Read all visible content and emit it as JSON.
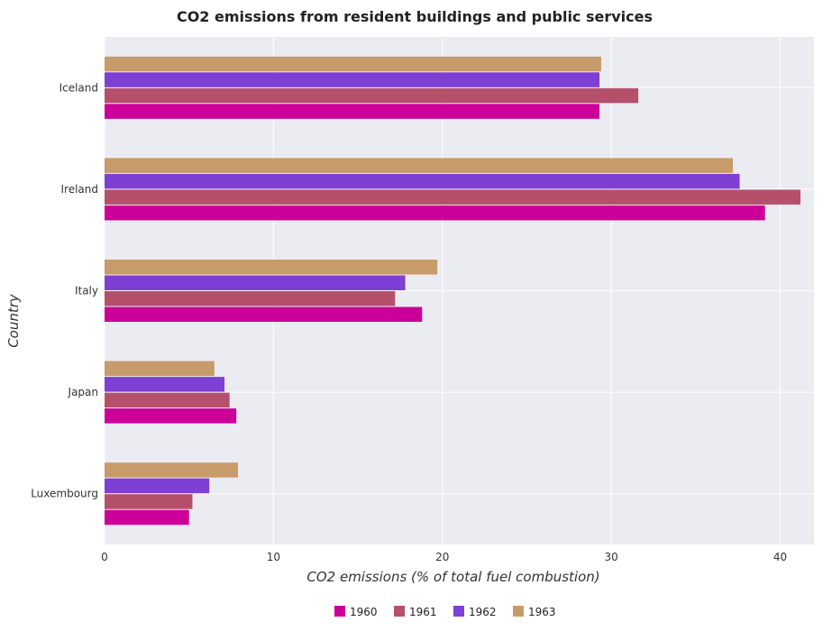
{
  "chart_data": {
    "type": "bar",
    "orientation": "horizontal",
    "title": "CO2 emissions from resident buildings and public services",
    "xlabel": "CO2 emissions (% of total fuel combustion)",
    "ylabel": "Country",
    "xlim": [
      0,
      42
    ],
    "xticks": [
      0,
      10,
      20,
      30,
      40
    ],
    "grid": true,
    "legend_position": "bottom",
    "categories": [
      "Iceland",
      "Ireland",
      "Italy",
      "Japan",
      "Luxembourg"
    ],
    "series": [
      {
        "name": "1960",
        "color": "#cc0099",
        "values": [
          29.3,
          39.1,
          18.8,
          7.8,
          5.0
        ]
      },
      {
        "name": "1961",
        "color": "#b5506b",
        "values": [
          31.6,
          41.2,
          17.2,
          7.4,
          5.2
        ]
      },
      {
        "name": "1962",
        "color": "#7e3fd4",
        "values": [
          29.3,
          37.6,
          17.8,
          7.1,
          6.2
        ]
      },
      {
        "name": "1963",
        "color": "#c89b6a",
        "values": [
          29.4,
          37.2,
          19.7,
          6.5,
          7.9
        ]
      }
    ]
  }
}
